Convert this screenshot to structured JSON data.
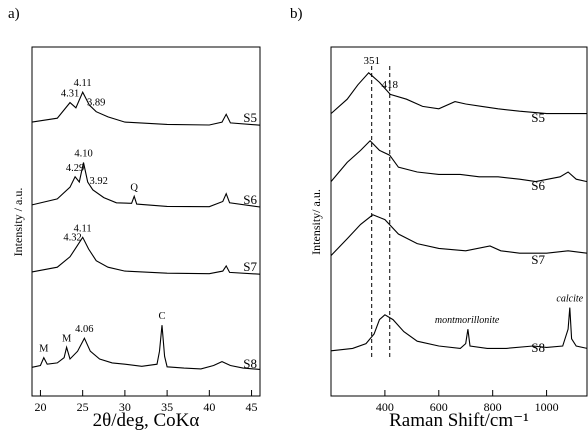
{
  "chart_data": [
    {
      "type": "line",
      "panel_label": "a)",
      "xlabel": "2θ/deg, CoKα",
      "ylabel": "Intensity / a.u.",
      "xlim": [
        19,
        46
      ],
      "xticks": [
        20,
        25,
        30,
        35,
        40,
        45
      ],
      "series": [
        {
          "name": "S5",
          "offset": 3,
          "points": [
            [
              19,
              0.15
            ],
            [
              22,
              0.3
            ],
            [
              23.5,
              0.9
            ],
            [
              24.2,
              0.7
            ],
            [
              25,
              1.3
            ],
            [
              25.8,
              0.8
            ],
            [
              26.6,
              0.55
            ],
            [
              28,
              0.35
            ],
            [
              30,
              0.15
            ],
            [
              35,
              0.06
            ],
            [
              40,
              0.04
            ],
            [
              41.5,
              0.15
            ],
            [
              42,
              0.45
            ],
            [
              42.5,
              0.12
            ],
            [
              46,
              0.03
            ]
          ]
        },
        {
          "name": "S6",
          "offset": 2,
          "points": [
            [
              19,
              0.12
            ],
            [
              22,
              0.35
            ],
            [
              23.5,
              0.8
            ],
            [
              24.1,
              1.2
            ],
            [
              24.6,
              1.0
            ],
            [
              25.1,
              1.75
            ],
            [
              25.6,
              1.0
            ],
            [
              26.2,
              0.7
            ],
            [
              27.5,
              0.4
            ],
            [
              29,
              0.2
            ],
            [
              30.8,
              0.18
            ],
            [
              31.1,
              0.45
            ],
            [
              31.4,
              0.15
            ],
            [
              35,
              0.06
            ],
            [
              40,
              0.05
            ],
            [
              41.6,
              0.25
            ],
            [
              42,
              0.55
            ],
            [
              42.4,
              0.2
            ],
            [
              46,
              0.04
            ]
          ]
        },
        {
          "name": "S7",
          "offset": 1,
          "points": [
            [
              19,
              0.12
            ],
            [
              22,
              0.3
            ],
            [
              23.5,
              0.7
            ],
            [
              24.3,
              1.1
            ],
            [
              25,
              1.45
            ],
            [
              25.7,
              1.0
            ],
            [
              26.6,
              0.55
            ],
            [
              28,
              0.3
            ],
            [
              30,
              0.15
            ],
            [
              35,
              0.07
            ],
            [
              40,
              0.05
            ],
            [
              41.6,
              0.15
            ],
            [
              42,
              0.35
            ],
            [
              42.4,
              0.1
            ],
            [
              46,
              0.03
            ]
          ]
        },
        {
          "name": "S8",
          "offset": 0,
          "points": [
            [
              19,
              0.18
            ],
            [
              20,
              0.25
            ],
            [
              20.4,
              0.55
            ],
            [
              20.8,
              0.3
            ],
            [
              22,
              0.35
            ],
            [
              22.8,
              0.55
            ],
            [
              23.1,
              0.95
            ],
            [
              23.5,
              0.5
            ],
            [
              24.4,
              0.8
            ],
            [
              25.2,
              1.3
            ],
            [
              25.9,
              0.8
            ],
            [
              27,
              0.5
            ],
            [
              28.5,
              0.35
            ],
            [
              30,
              0.3
            ],
            [
              32,
              0.22
            ],
            [
              33.8,
              0.3
            ],
            [
              34.1,
              0.8
            ],
            [
              34.4,
              1.8
            ],
            [
              34.7,
              0.6
            ],
            [
              35,
              0.2
            ],
            [
              37,
              0.15
            ],
            [
              39,
              0.12
            ],
            [
              40.5,
              0.25
            ],
            [
              41.5,
              0.4
            ],
            [
              42.5,
              0.25
            ],
            [
              44,
              0.15
            ],
            [
              46,
              0.1
            ]
          ]
        }
      ],
      "peak_labels": [
        {
          "series": "S5",
          "x": 23.5,
          "text": "4.31"
        },
        {
          "series": "S5",
          "x": 25.0,
          "text": "4.11"
        },
        {
          "series": "S5",
          "x": 26.6,
          "text": "3.89"
        },
        {
          "series": "S6",
          "x": 24.1,
          "text": "4.29"
        },
        {
          "series": "S6",
          "x": 25.1,
          "text": "4.10"
        },
        {
          "series": "S6",
          "x": 26.9,
          "text": "3.92"
        },
        {
          "series": "S6",
          "x": 31.1,
          "text": "Q"
        },
        {
          "series": "S7",
          "x": 23.8,
          "text": "4.32"
        },
        {
          "series": "S7",
          "x": 25.0,
          "text": "4.11"
        },
        {
          "series": "S8",
          "x": 20.4,
          "text": "M"
        },
        {
          "series": "S8",
          "x": 23.1,
          "text": "M"
        },
        {
          "series": "S8",
          "x": 25.2,
          "text": "4.06"
        },
        {
          "series": "S8",
          "x": 34.4,
          "text": "C"
        }
      ]
    },
    {
      "type": "line",
      "panel_label": "b)",
      "xlabel": "Raman Shift/cm⁻¹",
      "ylabel": "Intensity/ a.u.",
      "xlim": [
        200,
        1150
      ],
      "xticks": [
        400,
        600,
        800,
        1000
      ],
      "reference_lines": [
        {
          "x": 351,
          "label": "351"
        },
        {
          "x": 418,
          "label": "418"
        }
      ],
      "series": [
        {
          "name": "S5",
          "offset": 3,
          "points": [
            [
              200,
              0.3
            ],
            [
              260,
              0.6
            ],
            [
              300,
              0.9
            ],
            [
              340,
              1.15
            ],
            [
              380,
              0.95
            ],
            [
              420,
              0.7
            ],
            [
              480,
              0.6
            ],
            [
              540,
              0.45
            ],
            [
              600,
              0.4
            ],
            [
              660,
              0.55
            ],
            [
              700,
              0.5
            ],
            [
              760,
              0.45
            ],
            [
              820,
              0.4
            ],
            [
              900,
              0.35
            ],
            [
              1000,
              0.3
            ],
            [
              1100,
              0.3
            ],
            [
              1150,
              0.3
            ]
          ]
        },
        {
          "name": "S6",
          "offset": 2,
          "points": [
            [
              200,
              0.3
            ],
            [
              260,
              0.7
            ],
            [
              310,
              0.95
            ],
            [
              345,
              1.15
            ],
            [
              380,
              0.95
            ],
            [
              418,
              0.85
            ],
            [
              450,
              0.6
            ],
            [
              520,
              0.5
            ],
            [
              600,
              0.45
            ],
            [
              680,
              0.45
            ],
            [
              750,
              0.4
            ],
            [
              820,
              0.4
            ],
            [
              900,
              0.35
            ],
            [
              960,
              0.3
            ],
            [
              1050,
              0.4
            ],
            [
              1080,
              0.5
            ],
            [
              1110,
              0.35
            ],
            [
              1150,
              0.3
            ]
          ]
        },
        {
          "name": "S7",
          "offset": 1,
          "points": [
            [
              200,
              0.3
            ],
            [
              260,
              0.65
            ],
            [
              310,
              0.95
            ],
            [
              355,
              1.15
            ],
            [
              400,
              1.05
            ],
            [
              450,
              0.75
            ],
            [
              520,
              0.55
            ],
            [
              600,
              0.45
            ],
            [
              700,
              0.4
            ],
            [
              790,
              0.5
            ],
            [
              830,
              0.4
            ],
            [
              900,
              0.35
            ],
            [
              1000,
              0.35
            ],
            [
              1080,
              0.4
            ],
            [
              1150,
              0.35
            ]
          ]
        },
        {
          "name": "S8",
          "offset": 0,
          "points": [
            [
              200,
              0.15
            ],
            [
              280,
              0.2
            ],
            [
              330,
              0.3
            ],
            [
              360,
              0.5
            ],
            [
              380,
              0.8
            ],
            [
              400,
              0.9
            ],
            [
              430,
              0.8
            ],
            [
              470,
              0.55
            ],
            [
              520,
              0.35
            ],
            [
              600,
              0.25
            ],
            [
              680,
              0.2
            ],
            [
              700,
              0.3
            ],
            [
              708,
              0.6
            ],
            [
              716,
              0.25
            ],
            [
              780,
              0.2
            ],
            [
              850,
              0.2
            ],
            [
              950,
              0.25
            ],
            [
              1000,
              0.22
            ],
            [
              1060,
              0.25
            ],
            [
              1080,
              0.6
            ],
            [
              1086,
              1.05
            ],
            [
              1093,
              0.4
            ],
            [
              1110,
              0.25
            ],
            [
              1150,
              0.2
            ]
          ]
        }
      ],
      "annotations": [
        {
          "series": "S8",
          "x": 705,
          "text": "montmorillonite",
          "style": "italic"
        },
        {
          "series": "S8",
          "x": 1086,
          "text": "calcite",
          "style": "italic"
        }
      ]
    }
  ]
}
